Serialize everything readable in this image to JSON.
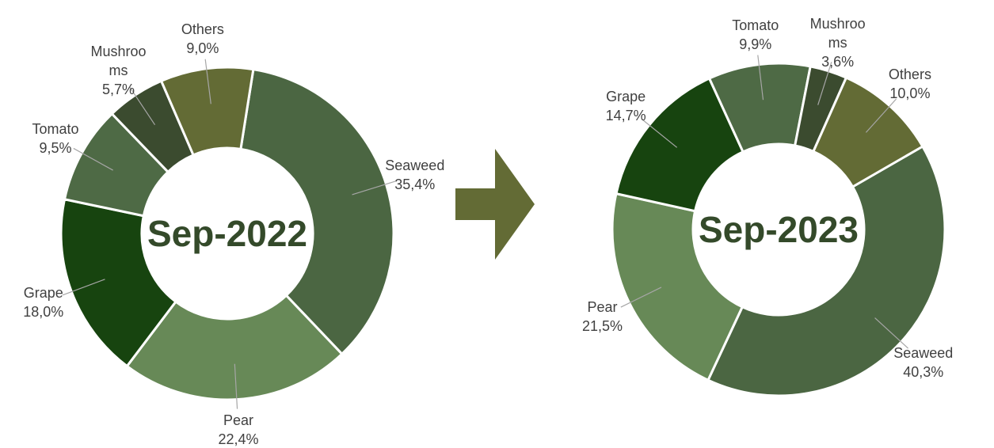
{
  "chart_data": [
    {
      "type": "donut",
      "title": "Sep-2022",
      "categories": [
        "Seaweed",
        "Pear",
        "Grape",
        "Tomato",
        "Mushrooms",
        "Others"
      ],
      "values": [
        35.4,
        22.4,
        18.0,
        9.5,
        5.7,
        9.0
      ],
      "value_labels": [
        "35,4%",
        "22,4%",
        "18,0%",
        "9,5%",
        "5,7%",
        "9,0%"
      ],
      "colors": [
        "#4b6642",
        "#678957",
        "#17440f",
        "#4e6a45",
        "#3b4b2f",
        "#636b35"
      ]
    },
    {
      "type": "donut",
      "title": "Sep-2023",
      "categories": [
        "Seaweed",
        "Pear",
        "Grape",
        "Tomato",
        "Mushrooms",
        "Others"
      ],
      "values": [
        40.3,
        21.5,
        14.7,
        9.9,
        3.6,
        10.0
      ],
      "value_labels": [
        "40,3%",
        "21,5%",
        "14,7%",
        "9,9%",
        "3,6%",
        "10,0%"
      ],
      "colors": [
        "#4b6642",
        "#678957",
        "#17440f",
        "#4e6a45",
        "#3b4b2f",
        "#636b35"
      ]
    }
  ]
}
